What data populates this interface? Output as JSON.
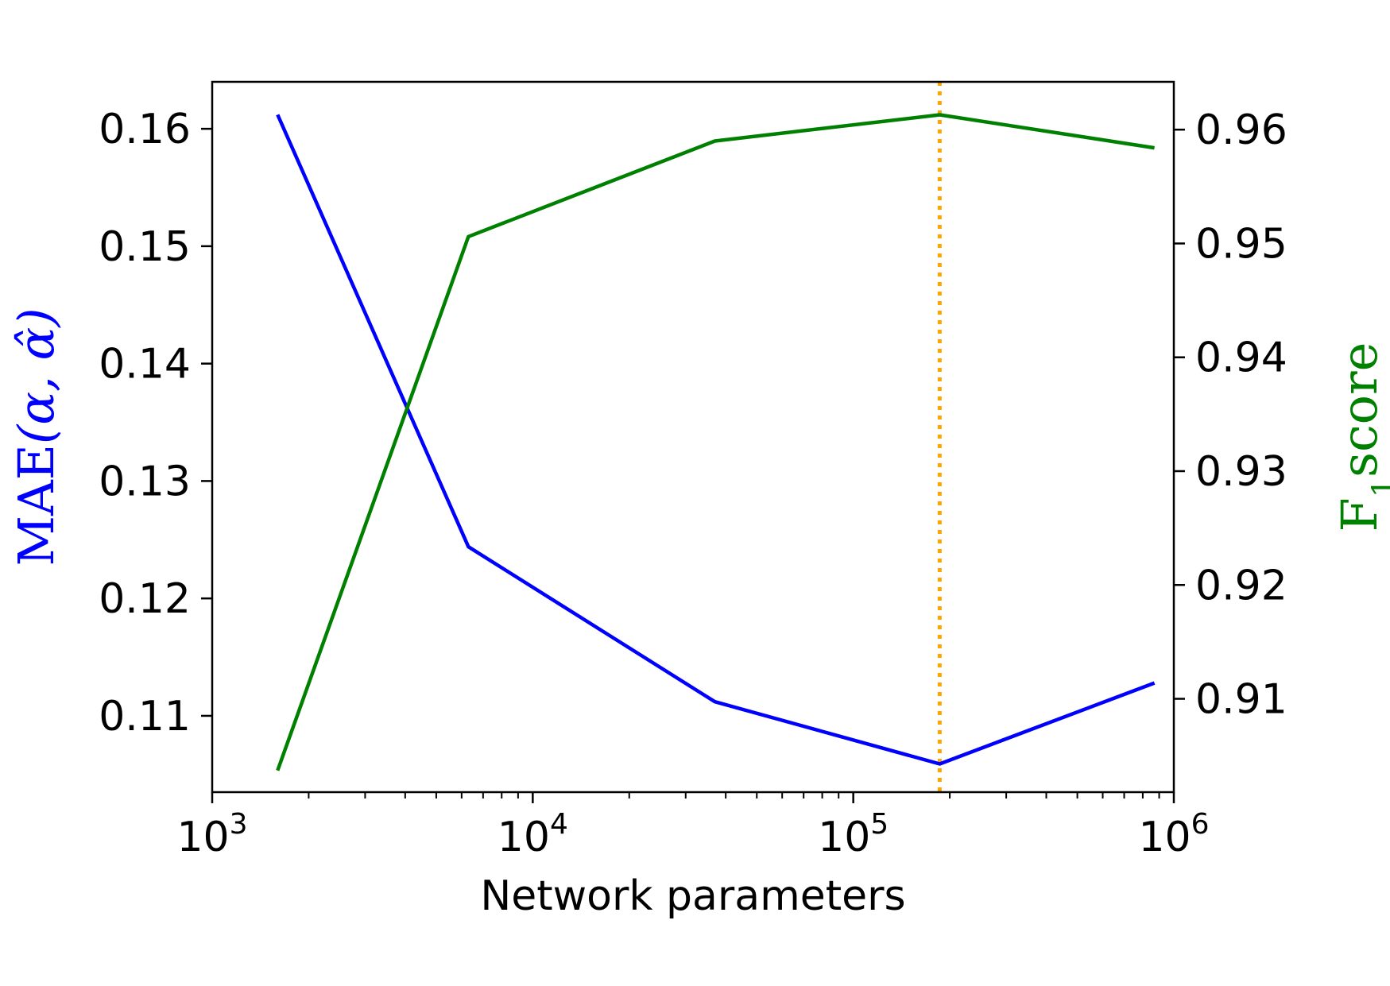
{
  "chart_data": {
    "type": "line",
    "x_scale": "log",
    "xlim": [
      1000,
      1000000
    ],
    "xlabel": "Network parameters",
    "x_ticks": [
      {
        "base": "10",
        "exp": "3",
        "value": 1000
      },
      {
        "base": "10",
        "exp": "4",
        "value": 10000
      },
      {
        "base": "10",
        "exp": "5",
        "value": 100000
      },
      {
        "base": "10",
        "exp": "6",
        "value": 1000000
      }
    ],
    "y_left": {
      "label": "MAE(α, α̂)",
      "label_main": "MAE",
      "label_args": "(α, α̂)",
      "color": "#0000ff",
      "ylim": [
        0.1035,
        0.164
      ],
      "ticks": [
        "0.11",
        "0.12",
        "0.13",
        "0.14",
        "0.15",
        "0.16"
      ]
    },
    "y_right": {
      "label": "F1score",
      "label_main": "F",
      "label_sub": "1",
      "label_rest": "score",
      "color": "#008000",
      "ylim": [
        0.9018,
        0.9642
      ],
      "ticks": [
        "0.91",
        "0.92",
        "0.93",
        "0.94",
        "0.95",
        "0.96"
      ]
    },
    "series": [
      {
        "axis": "left",
        "color": "#0000ff",
        "points": [
          {
            "x": 1600,
            "y": 0.1612
          },
          {
            "x": 6300,
            "y": 0.1244
          },
          {
            "x": 37000,
            "y": 0.1112
          },
          {
            "x": 186000,
            "y": 0.1059
          },
          {
            "x": 870000,
            "y": 0.1128
          }
        ]
      },
      {
        "axis": "right",
        "color": "#008000",
        "points": [
          {
            "x": 1600,
            "y": 0.9037
          },
          {
            "x": 6300,
            "y": 0.9506
          },
          {
            "x": 37000,
            "y": 0.959
          },
          {
            "x": 186000,
            "y": 0.9613
          },
          {
            "x": 870000,
            "y": 0.9584
          }
        ]
      }
    ],
    "vline": {
      "x": 186000,
      "color": "#ffa500",
      "style": "dotted"
    },
    "grid": false,
    "legend": "none"
  }
}
